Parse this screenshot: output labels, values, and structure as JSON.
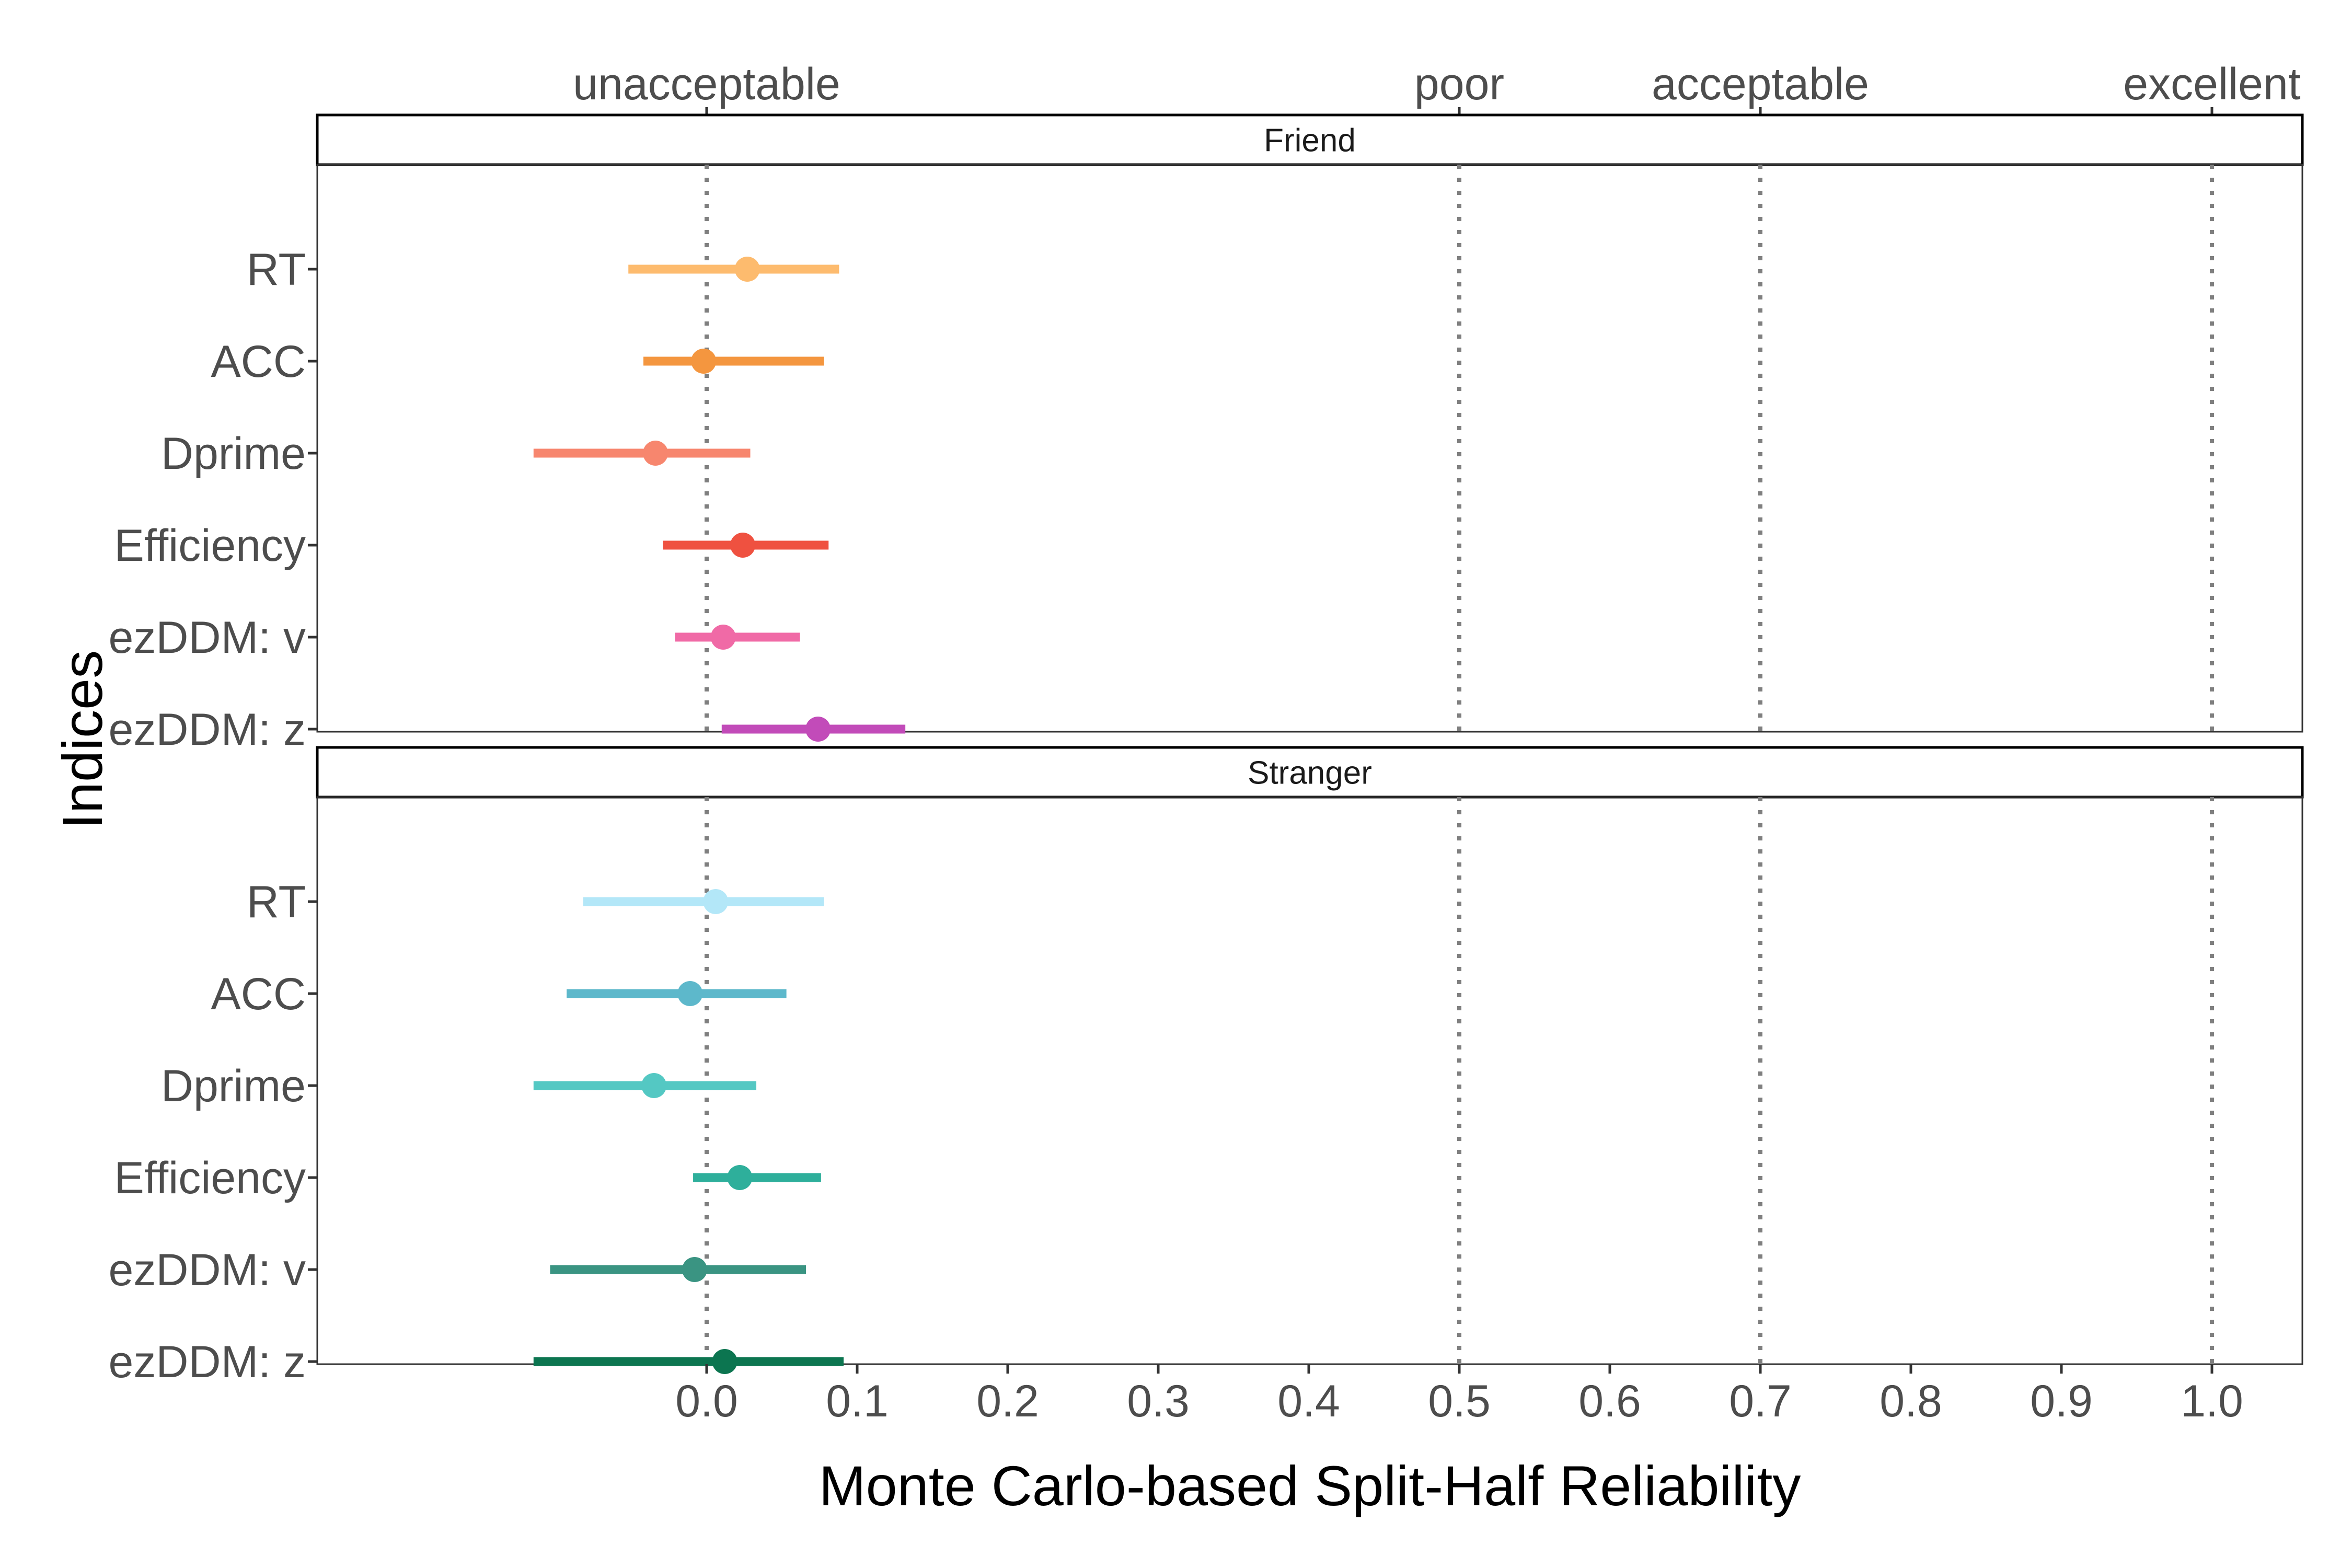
{
  "chart_data": {
    "type": "forest",
    "title": "",
    "xlabel": "Monte Carlo-based Split-Half Reliability",
    "ylabel": "Indices",
    "xlim": [
      -0.26,
      1.06
    ],
    "x_ticks": [
      "0.0",
      "0.1",
      "0.2",
      "0.3",
      "0.4",
      "0.5",
      "0.6",
      "0.7",
      "0.8",
      "0.9",
      "1.0"
    ],
    "x_tick_values": [
      0.0,
      0.1,
      0.2,
      0.3,
      0.4,
      0.5,
      0.6,
      0.7,
      0.8,
      0.9,
      1.0
    ],
    "categories": [
      "RT",
      "ACC",
      "Dprime",
      "Efficiency",
      "ezDDM: v",
      "ezDDM: z"
    ],
    "thresholds": [
      {
        "label": "unacceptable",
        "value": 0.0
      },
      {
        "label": "poor",
        "value": 0.5
      },
      {
        "label": "acceptable",
        "value": 0.7
      },
      {
        "label": "excellent",
        "value": 1.0
      }
    ],
    "panels": [
      {
        "name": "Friend",
        "points": [
          {
            "label": "RT",
            "estimate": 0.027,
            "lower": -0.052,
            "upper": 0.088,
            "color": "#FDBB6E"
          },
          {
            "label": "ACC",
            "estimate": -0.002,
            "lower": -0.042,
            "upper": 0.078,
            "color": "#F4963F"
          },
          {
            "label": "Dprime",
            "estimate": -0.034,
            "lower": -0.115,
            "upper": 0.029,
            "color": "#F7866E"
          },
          {
            "label": "Efficiency",
            "estimate": 0.024,
            "lower": -0.029,
            "upper": 0.081,
            "color": "#EF5140"
          },
          {
            "label": "ezDDM: v",
            "estimate": 0.011,
            "lower": -0.021,
            "upper": 0.062,
            "color": "#F06AA6"
          },
          {
            "label": "ezDDM: z",
            "estimate": 0.074,
            "lower": 0.01,
            "upper": 0.132,
            "color": "#C24BB9"
          }
        ]
      },
      {
        "name": "Stranger",
        "points": [
          {
            "label": "RT",
            "estimate": 0.006,
            "lower": -0.082,
            "upper": 0.078,
            "color": "#B3E7F8"
          },
          {
            "label": "ACC",
            "estimate": -0.011,
            "lower": -0.093,
            "upper": 0.053,
            "color": "#5DB8CB"
          },
          {
            "label": "Dprime",
            "estimate": -0.035,
            "lower": -0.115,
            "upper": 0.033,
            "color": "#54C8C3"
          },
          {
            "label": "Efficiency",
            "estimate": 0.022,
            "lower": -0.009,
            "upper": 0.076,
            "color": "#2EAF9B"
          },
          {
            "label": "ezDDM: v",
            "estimate": -0.008,
            "lower": -0.104,
            "upper": 0.066,
            "color": "#3A9482"
          },
          {
            "label": "ezDDM: z",
            "estimate": 0.012,
            "lower": -0.115,
            "upper": 0.091,
            "color": "#0C7550"
          }
        ]
      }
    ]
  }
}
